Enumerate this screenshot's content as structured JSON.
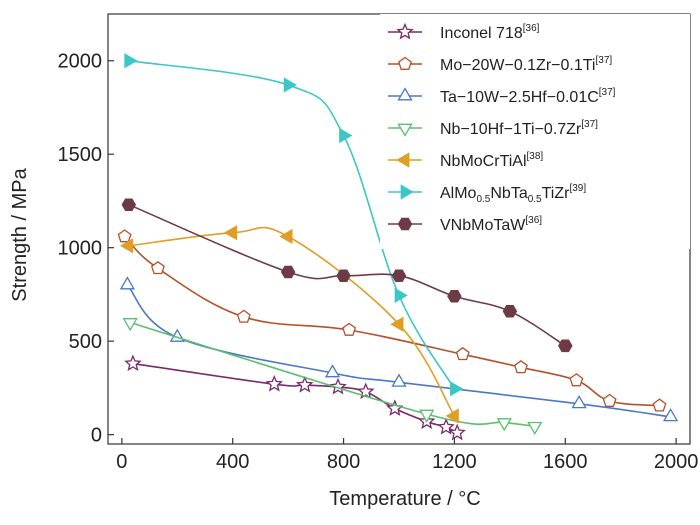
{
  "chart_data": {
    "type": "line",
    "xlabel": "Temperature / °C",
    "ylabel": "Strength / MPa",
    "xlim": [
      -50,
      2050
    ],
    "ylim": [
      -50,
      2250
    ],
    "xticks": [
      0,
      400,
      800,
      1200,
      1600,
      2000
    ],
    "yticks": [
      0,
      500,
      1000,
      1500,
      2000
    ],
    "legend_position": "top-right",
    "series": [
      {
        "name": "Inconel 718",
        "ref": "[36]",
        "color": "#7a2a6a",
        "marker": "star",
        "filled": false,
        "points": [
          [
            40,
            380
          ],
          [
            550,
            270
          ],
          [
            660,
            265
          ],
          [
            780,
            255
          ],
          [
            880,
            230
          ],
          [
            985,
            140
          ],
          [
            1100,
            70
          ],
          [
            1170,
            40
          ],
          [
            1210,
            10
          ]
        ]
      },
      {
        "name": "Mo−20W−0.1Zr−0.1Ti",
        "ref": "[37]",
        "color": "#b5502a",
        "marker": "pentagon",
        "filled": false,
        "points": [
          [
            10,
            1060
          ],
          [
            130,
            890
          ],
          [
            440,
            630
          ],
          [
            820,
            560
          ],
          [
            1230,
            430
          ],
          [
            1440,
            360
          ],
          [
            1640,
            290
          ],
          [
            1760,
            180
          ],
          [
            1940,
            155
          ]
        ]
      },
      {
        "name": "Ta−10W−2.5Hf−0.01C",
        "ref": "[37]",
        "color": "#4a78c8",
        "marker": "triangle-up",
        "filled": false,
        "points": [
          [
            20,
            800
          ],
          [
            200,
            520
          ],
          [
            760,
            330
          ],
          [
            1000,
            280
          ],
          [
            1650,
            165
          ],
          [
            1980,
            95
          ]
        ]
      },
      {
        "name": "Nb−10Hf−1Ti−0.7Zr",
        "ref": "[37]",
        "color": "#5cbf6e",
        "marker": "triangle-down",
        "filled": false,
        "points": [
          [
            30,
            600
          ],
          [
            1100,
            110
          ],
          [
            1380,
            65
          ],
          [
            1490,
            45
          ]
        ]
      },
      {
        "name": "NbMoCrTiAl",
        "ref": "[38]",
        "color": "#e09f24",
        "marker": "triangle-left",
        "filled": true,
        "points": [
          [
            25,
            1010
          ],
          [
            400,
            1080
          ],
          [
            600,
            1060
          ],
          [
            1000,
            590
          ],
          [
            1200,
            100
          ]
        ]
      },
      {
        "name": "AlMo0.5NbTa0.5TiZr",
        "ref": "[39]",
        "color": "#3cc7c7",
        "marker": "triangle-right",
        "filled": true,
        "points": [
          [
            25,
            2000
          ],
          [
            600,
            1870
          ],
          [
            800,
            1600
          ],
          [
            1000,
            745
          ],
          [
            1200,
            245
          ]
        ]
      },
      {
        "name": "VNbMoTaW",
        "ref": "[36]",
        "color": "#6e3a46",
        "marker": "hexagon",
        "filled": true,
        "points": [
          [
            25,
            1230
          ],
          [
            600,
            870
          ],
          [
            800,
            850
          ],
          [
            1000,
            850
          ],
          [
            1200,
            740
          ],
          [
            1400,
            660
          ],
          [
            1600,
            475
          ]
        ]
      }
    ]
  },
  "legend": [
    {
      "parts": [
        {
          "t": "Inconel 718",
          "s": "n"
        },
        {
          "t": "[36]",
          "s": "sup"
        }
      ]
    },
    {
      "parts": [
        {
          "t": "Mo−20W−0.1Zr−0.1Ti",
          "s": "n"
        },
        {
          "t": "[37]",
          "s": "sup"
        }
      ]
    },
    {
      "parts": [
        {
          "t": "Ta−10W−2.5Hf−0.01C",
          "s": "n"
        },
        {
          "t": "[37]",
          "s": "sup"
        }
      ]
    },
    {
      "parts": [
        {
          "t": "Nb−10Hf−1Ti−0.7Zr",
          "s": "n"
        },
        {
          "t": "[37]",
          "s": "sup"
        }
      ]
    },
    {
      "parts": [
        {
          "t": "NbMoCrTiAl",
          "s": "n"
        },
        {
          "t": "[38]",
          "s": "sup"
        }
      ]
    },
    {
      "parts": [
        {
          "t": "AlMo",
          "s": "n"
        },
        {
          "t": "0.5",
          "s": "sub"
        },
        {
          "t": "NbTa",
          "s": "n"
        },
        {
          "t": "0.5",
          "s": "sub"
        },
        {
          "t": "TiZr",
          "s": "n"
        },
        {
          "t": "[39]",
          "s": "sup"
        }
      ]
    },
    {
      "parts": [
        {
          "t": "VNbMoTaW",
          "s": "n"
        },
        {
          "t": "[36]",
          "s": "sup"
        }
      ]
    }
  ]
}
